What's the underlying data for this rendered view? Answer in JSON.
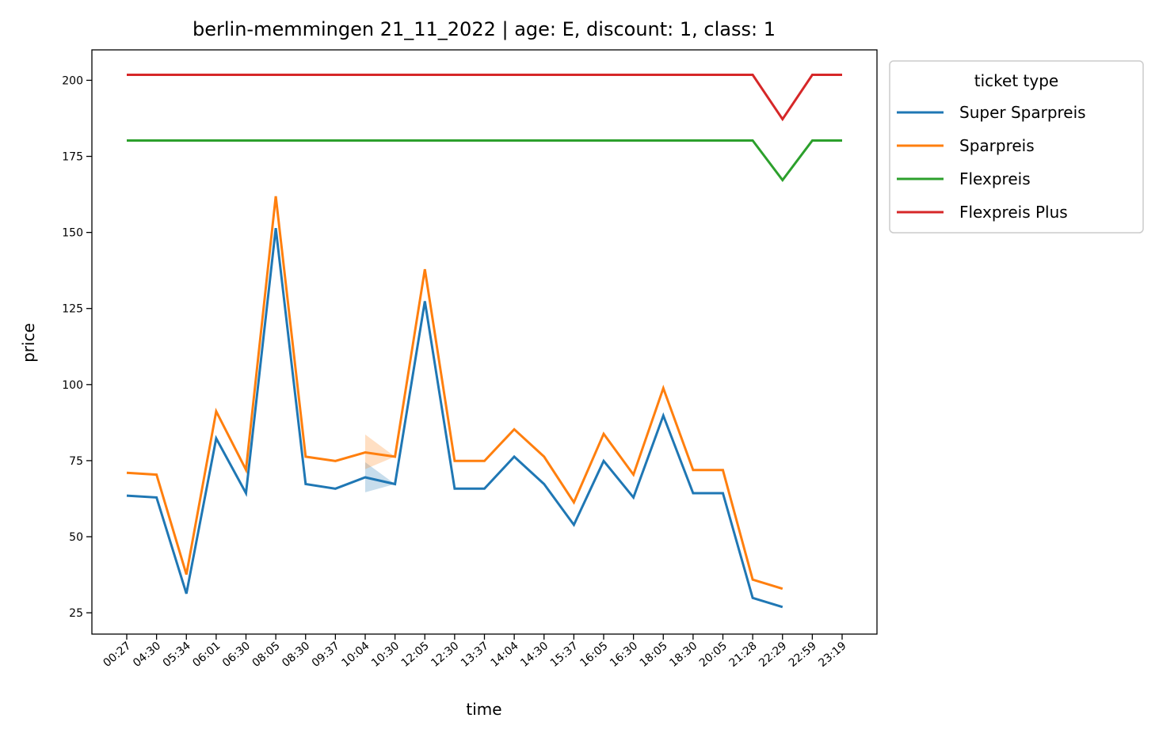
{
  "chart_data": {
    "type": "line",
    "title": "berlin-memmingen 21_11_2022 | age: E, discount: 1, class: 1",
    "xlabel": "time",
    "ylabel": "price",
    "ylim": [
      18,
      210
    ],
    "yticks": [
      25,
      50,
      75,
      100,
      125,
      150,
      175,
      200
    ],
    "categories": [
      "00:27",
      "04:30",
      "05:34",
      "06:01",
      "06:30",
      "08:05",
      "08:30",
      "09:37",
      "10:04",
      "10:30",
      "12:05",
      "12:30",
      "13:37",
      "14:04",
      "14:30",
      "15:37",
      "16:05",
      "16:30",
      "18:05",
      "18:30",
      "20:05",
      "21:28",
      "22:29",
      "22:59",
      "23:19"
    ],
    "grid": false,
    "legend": {
      "title": "ticket type",
      "placement": "outside-top-right"
    },
    "series": [
      {
        "name": "Super Sparpreis",
        "color": "#1f77b4",
        "values": [
          63.5,
          62.9,
          31.3,
          82.3,
          64.3,
          151.4,
          67.3,
          65.8,
          69.5,
          67.3,
          127.4,
          65.8,
          65.8,
          76.3,
          67.3,
          53.9,
          74.9,
          62.9,
          89.8,
          64.3,
          64.3,
          29.9,
          26.9,
          null,
          null
        ],
        "band": {
          "index": 8,
          "low": 64.6,
          "high": 74.5
        }
      },
      {
        "name": "Sparpreis",
        "color": "#ff7f0e",
        "values": [
          71.0,
          70.4,
          37.6,
          91.2,
          72.0,
          161.9,
          76.3,
          74.9,
          77.7,
          76.3,
          137.9,
          74.9,
          74.9,
          85.3,
          76.3,
          61.3,
          83.8,
          70.4,
          98.8,
          71.9,
          71.9,
          35.9,
          32.9,
          null,
          null
        ],
        "band": {
          "index": 8,
          "low": 72.2,
          "high": 83.6
        }
      },
      {
        "name": "Flexpreis",
        "color": "#2ca02c",
        "values": [
          180.2,
          180.2,
          180.2,
          180.2,
          180.2,
          180.2,
          180.2,
          180.2,
          180.2,
          180.2,
          180.2,
          180.2,
          180.2,
          180.2,
          180.2,
          180.2,
          180.2,
          180.2,
          180.2,
          180.2,
          180.2,
          180.2,
          167.2,
          180.2,
          180.2
        ]
      },
      {
        "name": "Flexpreis Plus",
        "color": "#d62728",
        "values": [
          201.8,
          201.8,
          201.8,
          201.8,
          201.8,
          201.8,
          201.8,
          201.8,
          201.8,
          201.8,
          201.8,
          201.8,
          201.8,
          201.8,
          201.8,
          201.8,
          201.8,
          201.8,
          201.8,
          201.8,
          201.8,
          201.8,
          187.2,
          201.8,
          201.8
        ]
      }
    ]
  }
}
